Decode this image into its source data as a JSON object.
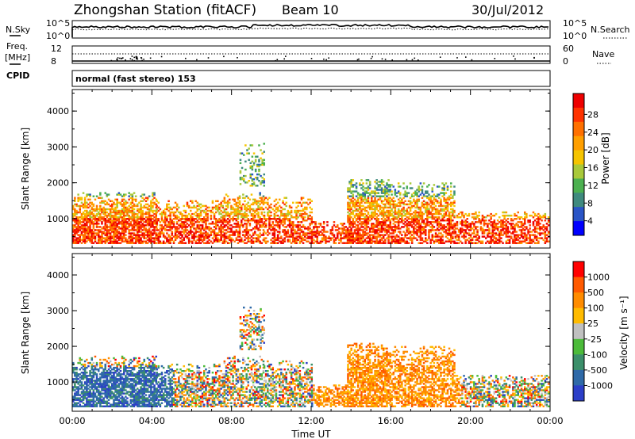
{
  "header": {
    "station": "Zhongshan Station (fitACF)",
    "beam": "Beam 10",
    "date": "30/Jul/2012"
  },
  "top_panels": {
    "nsky_label": "N.Sky",
    "nsky_ticks": [
      "10^5",
      "10^0"
    ],
    "nsearch_label": "N.Search",
    "nsearch_ticks": [
      "10^5",
      "10^0"
    ],
    "freq_label": "Freq.",
    "freq_unit": "[MHz]",
    "freq_ticks": [
      "12",
      "8"
    ],
    "nave_label": "Nave",
    "nave_ticks": [
      "60",
      "0"
    ],
    "cpid_label": "CPID",
    "cpid_text": "normal (fast stereo) 153"
  },
  "chart_data": [
    {
      "type": "heatmap",
      "name": "power",
      "ylabel": "Slant Range [km]",
      "xlabel": "Time UT",
      "xlim_hours": [
        0,
        24
      ],
      "ylim": [
        180,
        4600
      ],
      "y_ticks": [
        "1000",
        "2000",
        "3000",
        "4000"
      ],
      "colorbar": {
        "label": "Power [dB]",
        "ticks": [
          "4",
          "8",
          "12",
          "16",
          "20",
          "24",
          "28"
        ],
        "colors": [
          "#0000ff",
          "#2a55c6",
          "#3f8a7e",
          "#4cb050",
          "#a9c93a",
          "#f5c400",
          "#ff9f00",
          "#ff7000",
          "#ff3300",
          "#ee0000"
        ]
      }
    },
    {
      "type": "heatmap",
      "name": "velocity",
      "ylabel": "Slant Range [km]",
      "xlabel": "Time UT",
      "xlim_hours": [
        0,
        24
      ],
      "ylim": [
        180,
        4600
      ],
      "y_ticks": [
        "1000",
        "2000",
        "3000",
        "4000"
      ],
      "colorbar": {
        "label": "Velocity [m s⁻¹]",
        "ticks": [
          "1000",
          "500",
          "100",
          "25",
          "-25",
          "-100",
          "-500",
          "-1000"
        ],
        "colors": [
          "#2c3fc8",
          "#2f6aa8",
          "#3b8f6a",
          "#4cbb3a",
          "#c0c0c0",
          "#ffbb00",
          "#ff8c00",
          "#ff5a00",
          "#ff0000"
        ]
      }
    }
  ],
  "x_axis": {
    "ticks": [
      "00:00",
      "04:00",
      "08:00",
      "12:00",
      "16:00",
      "20:00",
      "00:00"
    ],
    "label": "Time UT"
  }
}
